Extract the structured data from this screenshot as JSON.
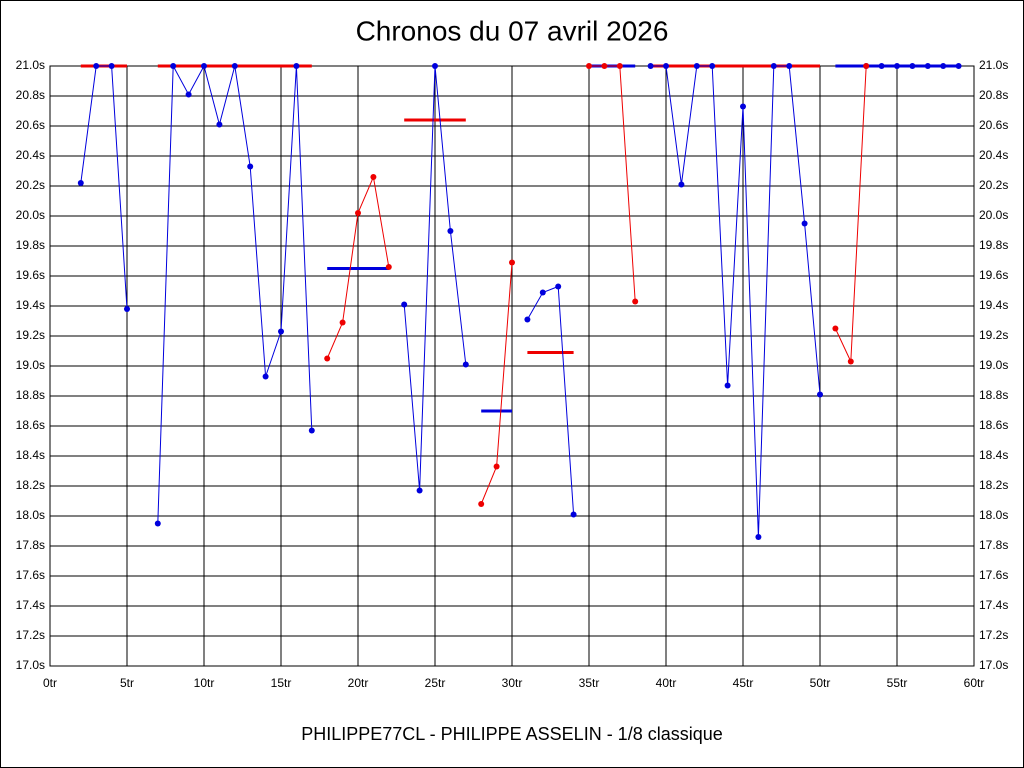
{
  "chart_data": {
    "type": "line",
    "title": "Chronos du 07 avril 2026",
    "footer": "PHILIPPE77CL - PHILIPPE ASSELIN - 1/8 classique",
    "grid": true,
    "xlim": [
      0,
      60
    ],
    "ylim": [
      17.0,
      21.0
    ],
    "xticks": [
      {
        "value": 0,
        "label": "0tr"
      },
      {
        "value": 5,
        "label": "5tr"
      },
      {
        "value": 10,
        "label": "10tr"
      },
      {
        "value": 15,
        "label": "15tr"
      },
      {
        "value": 20,
        "label": "20tr"
      },
      {
        "value": 25,
        "label": "25tr"
      },
      {
        "value": 30,
        "label": "30tr"
      },
      {
        "value": 35,
        "label": "35tr"
      },
      {
        "value": 40,
        "label": "40tr"
      },
      {
        "value": 45,
        "label": "45tr"
      },
      {
        "value": 50,
        "label": "50tr"
      },
      {
        "value": 55,
        "label": "55tr"
      },
      {
        "value": 60,
        "label": "60tr"
      }
    ],
    "yticks": [
      {
        "value": 17.0,
        "label": "17.0s"
      },
      {
        "value": 17.2,
        "label": "17.2s"
      },
      {
        "value": 17.4,
        "label": "17.4s"
      },
      {
        "value": 17.6,
        "label": "17.6s"
      },
      {
        "value": 17.8,
        "label": "17.8s"
      },
      {
        "value": 18.0,
        "label": "18.0s"
      },
      {
        "value": 18.2,
        "label": "18.2s"
      },
      {
        "value": 18.4,
        "label": "18.4s"
      },
      {
        "value": 18.6,
        "label": "18.6s"
      },
      {
        "value": 18.8,
        "label": "18.8s"
      },
      {
        "value": 19.0,
        "label": "19.0s"
      },
      {
        "value": 19.2,
        "label": "19.2s"
      },
      {
        "value": 19.4,
        "label": "19.4s"
      },
      {
        "value": 19.6,
        "label": "19.6s"
      },
      {
        "value": 19.8,
        "label": "19.8s"
      },
      {
        "value": 20.0,
        "label": "20.0s"
      },
      {
        "value": 20.2,
        "label": "20.2s"
      },
      {
        "value": 20.4,
        "label": "20.4s"
      },
      {
        "value": 20.6,
        "label": "20.6s"
      },
      {
        "value": 20.8,
        "label": "20.8s"
      },
      {
        "value": 21.0,
        "label": "21.0s"
      }
    ],
    "x": [
      2,
      3,
      4,
      5,
      6,
      7,
      8,
      9,
      10,
      11,
      12,
      13,
      14,
      15,
      16,
      17,
      18,
      19,
      20,
      21,
      22,
      23,
      24,
      25,
      26,
      27,
      28,
      29,
      30,
      31,
      32,
      33,
      34,
      35,
      36,
      37,
      38,
      39,
      40,
      41,
      42,
      43,
      44,
      45,
      46,
      47,
      48,
      49,
      50,
      51,
      52,
      53,
      54,
      55,
      56,
      57,
      58,
      59
    ],
    "series": [
      {
        "color": "#0000dd",
        "values": [
          20.22,
          21.0,
          21.0,
          19.38,
          null,
          17.95,
          21.0,
          20.81,
          21.0,
          20.61,
          21.0,
          20.33,
          18.93,
          19.23,
          21.0,
          18.57,
          null,
          null,
          null,
          null,
          null,
          19.41,
          18.17,
          21.0,
          19.9,
          19.01,
          null,
          null,
          null,
          19.31,
          19.49,
          19.53,
          18.01,
          null,
          null,
          null,
          null,
          21.0,
          21.0,
          20.21,
          21.0,
          21.0,
          18.87,
          20.73,
          17.86,
          21.0,
          21.0,
          19.95,
          18.81,
          null,
          null,
          21.0,
          21.0,
          21.0,
          21.0,
          21.0,
          21.0,
          21.0
        ]
      },
      {
        "color": "#ee0000",
        "values": [
          null,
          null,
          null,
          null,
          null,
          null,
          null,
          null,
          null,
          null,
          null,
          null,
          null,
          null,
          null,
          null,
          19.05,
          19.29,
          20.02,
          20.26,
          19.66,
          null,
          null,
          null,
          null,
          null,
          18.08,
          18.33,
          19.69,
          null,
          null,
          null,
          null,
          21.0,
          21.0,
          21.0,
          19.43,
          null,
          null,
          null,
          null,
          null,
          null,
          null,
          null,
          null,
          null,
          null,
          null,
          19.25,
          19.03,
          21.0,
          null,
          null,
          null,
          null,
          null,
          null
        ]
      }
    ],
    "averages": [
      {
        "color": "#ee0000",
        "y": 21.0,
        "x_start": 2,
        "x_end": 5
      },
      {
        "color": "#ee0000",
        "y": 21.0,
        "x_start": 7,
        "x_end": 17
      },
      {
        "color": "#0000dd",
        "y": 19.65,
        "x_start": 18,
        "x_end": 22
      },
      {
        "color": "#ee0000",
        "y": 20.64,
        "x_start": 23,
        "x_end": 27
      },
      {
        "color": "#0000dd",
        "y": 18.7,
        "x_start": 28,
        "x_end": 30
      },
      {
        "color": "#ee0000",
        "y": 19.09,
        "x_start": 31,
        "x_end": 34
      },
      {
        "color": "#0000dd",
        "y": 21.0,
        "x_start": 35,
        "x_end": 38
      },
      {
        "color": "#ee0000",
        "y": 21.0,
        "x_start": 39,
        "x_end": 50
      },
      {
        "color": "#0000dd",
        "y": 21.0,
        "x_start": 51,
        "x_end": 59
      }
    ]
  }
}
